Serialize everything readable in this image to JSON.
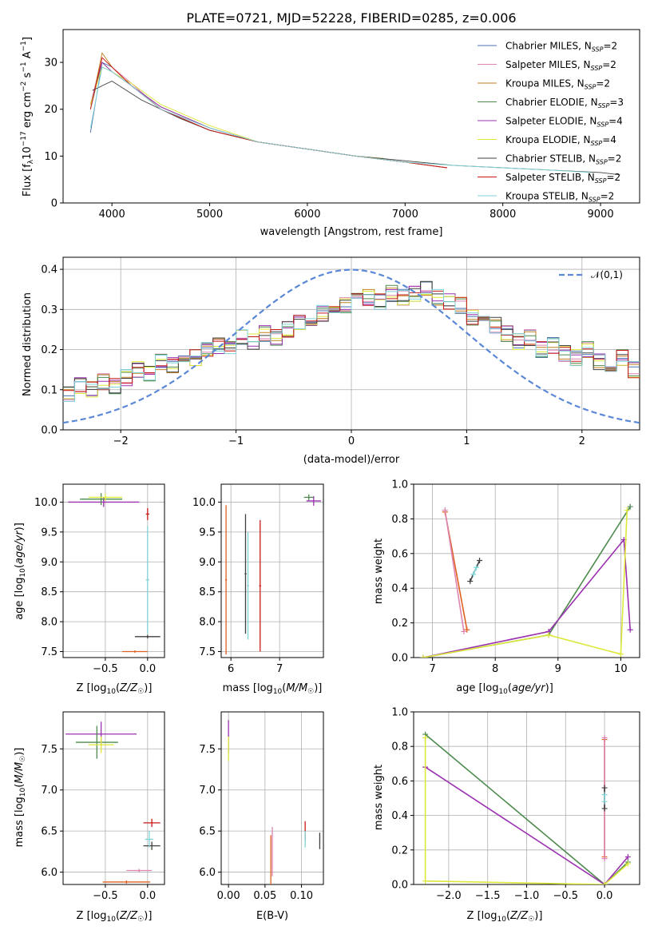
{
  "chart_data": [
    {
      "type": "line",
      "title": "PLATE=0721, MJD=52228, FIBERID=0285, z=0.006",
      "xlabel": "wavelength [Angstrom, rest frame]",
      "ylabel": "Flux [f_λ10^-17 erg cm^-2 s^-1 A^-1]",
      "xlim": [
        3500,
        9400
      ],
      "ylim": [
        0,
        37
      ],
      "xticks": [
        4000,
        5000,
        6000,
        7000,
        8000,
        9000
      ],
      "yticks": [
        0,
        10,
        20,
        30
      ],
      "grid": false,
      "legend_position": "top-right",
      "series": [
        {
          "name": "Chabrier MILES, N_SSP=2",
          "color": "#4c72b0",
          "x": [
            3780,
            3900,
            4000,
            4200,
            4500,
            5000,
            5500,
            6000,
            6500,
            7000,
            7430
          ],
          "y": [
            15,
            30,
            29,
            25,
            20,
            15.5,
            13,
            11.5,
            10,
            8.7,
            7.5
          ]
        },
        {
          "name": "Salpeter MILES, N_SSP=2",
          "color": "#dd84b0",
          "x": [
            3780,
            3900,
            4000,
            4200,
            4500,
            5000,
            5500,
            6000,
            6500,
            7000,
            7430
          ],
          "y": [
            21,
            31,
            29,
            25.5,
            20,
            15.5,
            13,
            11.5,
            10,
            8.7,
            7.5
          ]
        },
        {
          "name": "Kroupa MILES, N_SSP=2",
          "color": "#c08020",
          "x": [
            3780,
            3900,
            4000,
            4200,
            4500,
            5000,
            5500,
            6000,
            6500,
            7000,
            7430
          ],
          "y": [
            20,
            32,
            29,
            25,
            20,
            15.5,
            13,
            11.5,
            10,
            8.7,
            7.5
          ]
        },
        {
          "name": "Chabrier ELODIE, N_SSP=3",
          "color": "#4e8a4e",
          "x": [
            3780,
            3900,
            4000,
            4200,
            4500,
            5000,
            5500,
            6000,
            6500,
            6780
          ],
          "y": [
            20,
            30,
            28,
            25,
            20.5,
            16,
            13,
            11.5,
            10,
            9.5
          ]
        },
        {
          "name": "Salpeter ELODIE, N_SSP=4",
          "color": "#9b30b0",
          "x": [
            3780,
            3900,
            4000,
            4200,
            4500,
            5000,
            5500,
            6000,
            6500,
            6780
          ],
          "y": [
            21,
            30,
            28,
            25,
            20.5,
            16,
            13,
            11.5,
            10,
            9.5
          ]
        },
        {
          "name": "Kroupa ELODIE, N_SSP=4",
          "color": "#dde83a",
          "x": [
            3780,
            3900,
            4000,
            4200,
            4500,
            5000,
            5500,
            6000,
            6500,
            6780
          ],
          "y": [
            21,
            29,
            28,
            25.5,
            21,
            16.5,
            13,
            11.5,
            10,
            9.5
          ]
        },
        {
          "name": "Chabrier STELIB, N_SSP=2",
          "color": "#404040",
          "x": [
            3800,
            4000,
            4300,
            4700,
            5000,
            5500,
            6000,
            6500,
            7000,
            7500,
            8000,
            8500,
            9000,
            9200
          ],
          "y": [
            24,
            26,
            22,
            18,
            15.5,
            13,
            11.5,
            10,
            9,
            8,
            7.5,
            7,
            6.5,
            6
          ]
        },
        {
          "name": "Salpeter STELIB, N_SSP=2",
          "color": "#c81818",
          "x": [
            3780,
            3900,
            4000,
            4200,
            4500,
            5000,
            5500,
            6000,
            6500,
            7000,
            7430
          ],
          "y": [
            20,
            31,
            29,
            25,
            20,
            15.5,
            13,
            11.5,
            10,
            8.7,
            7.5
          ]
        },
        {
          "name": "Kroupa STELIB, N_SSP=2",
          "color": "#7fd4d8",
          "x": [
            3780,
            3900,
            4000,
            4200,
            4500,
            5000,
            5500,
            6000,
            6500,
            7000,
            7500,
            8000,
            8500,
            8900
          ],
          "y": [
            16,
            29,
            28,
            25,
            20,
            16,
            13,
            11.5,
            10,
            8.7,
            8,
            7.5,
            7,
            6.5
          ]
        }
      ]
    },
    {
      "type": "line",
      "xlabel": "(data-model)/error",
      "ylabel": "Normed distribution",
      "xlim": [
        -2.5,
        2.5
      ],
      "ylim": [
        0,
        0.43
      ],
      "xticks": [
        -2,
        -1,
        0,
        1,
        2
      ],
      "yticks": [
        0.0,
        0.1,
        0.2,
        0.3,
        0.4
      ],
      "grid": true,
      "legend_position": "top-right",
      "legend": "𝒩(0,1)",
      "reference": {
        "name": "𝒩(0,1)",
        "color": "#5a87d6",
        "style": "dashed"
      },
      "bin_edges_range": [
        -2.5,
        2.5
      ],
      "bin_width": 0.1,
      "histogram_base": [
        0.09,
        0.11,
        0.1,
        0.12,
        0.11,
        0.13,
        0.15,
        0.14,
        0.17,
        0.16,
        0.19,
        0.18,
        0.2,
        0.21,
        0.2,
        0.23,
        0.22,
        0.24,
        0.23,
        0.25,
        0.27,
        0.28,
        0.29,
        0.3,
        0.31,
        0.32,
        0.33,
        0.32,
        0.34,
        0.33,
        0.34,
        0.35,
        0.33,
        0.32,
        0.31,
        0.28,
        0.27,
        0.26,
        0.24,
        0.22,
        0.23,
        0.2,
        0.21,
        0.19,
        0.18,
        0.2,
        0.17,
        0.16,
        0.18,
        0.15
      ],
      "histogram_colors": [
        "#4c72b0",
        "#dd84b0",
        "#c08020",
        "#4e8a4e",
        "#9b30b0",
        "#dde83a",
        "#404040",
        "#c81818",
        "#7fd4d8"
      ]
    },
    {
      "type": "scatter",
      "xlabel": "Z [log10(Z/Z☉)]",
      "ylabel": "age  [log10(age/yr)]",
      "xlim": [
        -1.0,
        0.2
      ],
      "ylim": [
        7.4,
        10.3
      ],
      "xticks": [
        -0.5,
        0.0
      ],
      "yticks": [
        7.5,
        8.0,
        8.5,
        9.0,
        9.5,
        10.0
      ],
      "grid": true,
      "points": [
        {
          "x": -0.52,
          "y": 10.0,
          "xerr": 0.42,
          "yerr": 0.08,
          "color": "#9b30b0"
        },
        {
          "x": -0.55,
          "y": 10.05,
          "xerr": 0.25,
          "yerr": 0.1,
          "color": "#4e8a4e"
        },
        {
          "x": -0.5,
          "y": 10.08,
          "xerr": 0.2,
          "yerr": 0.06,
          "color": "#dde83a"
        },
        {
          "x": 0.0,
          "y": 9.8,
          "xerr": 0.02,
          "yerr": 0.1,
          "color": "#c81818"
        },
        {
          "x": 0.0,
          "y": 7.75,
          "xerr": 0.15,
          "yerr": 0.03,
          "color": "#404040"
        },
        {
          "x": -0.15,
          "y": 7.5,
          "xerr": 0.15,
          "yerr": 0.02,
          "color": "#e06020"
        },
        {
          "x": 0.0,
          "y": 8.7,
          "xerr": 0.02,
          "yerr": 0.9,
          "color": "#7fd4d8"
        }
      ]
    },
    {
      "type": "scatter",
      "xlabel": "mass [log10(M/M☉)]",
      "ylabel": "",
      "xlim": [
        5.8,
        7.9
      ],
      "ylim": [
        7.4,
        10.3
      ],
      "xticks": [
        6,
        7
      ],
      "yticks": [
        7.5,
        8.0,
        8.5,
        9.0,
        9.5,
        10.0
      ],
      "grid": true,
      "points": [
        {
          "x": 7.7,
          "y": 10.02,
          "xerr": 0.15,
          "yerr": 0.08,
          "color": "#9b30b0"
        },
        {
          "x": 7.6,
          "y": 10.08,
          "xerr": 0.1,
          "yerr": 0.05,
          "color": "#4e8a4e"
        },
        {
          "x": 5.9,
          "y": 8.7,
          "xerr": 0.02,
          "yerr": 1.25,
          "color": "#e06020"
        },
        {
          "x": 6.6,
          "y": 8.6,
          "xerr": 0.02,
          "yerr": 1.1,
          "color": "#c81818"
        },
        {
          "x": 6.35,
          "y": 8.6,
          "xerr": 0.02,
          "yerr": 0.9,
          "color": "#7fd4d8"
        },
        {
          "x": 6.3,
          "y": 8.8,
          "xerr": 0.02,
          "yerr": 1.0,
          "color": "#404040"
        }
      ]
    },
    {
      "type": "line",
      "xlabel": "age  [log10(age/yr)]",
      "ylabel": "mass weight",
      "xlim": [
        6.7,
        10.3
      ],
      "ylim": [
        0,
        1.0
      ],
      "xticks": [
        7,
        8,
        9,
        10
      ],
      "yticks": [
        0.0,
        0.2,
        0.4,
        0.6,
        0.8,
        1.0
      ],
      "grid": true,
      "series": [
        {
          "color": "#4e8a4e",
          "x": [
            6.85,
            8.85,
            10.15
          ],
          "y": [
            0.0,
            0.13,
            0.87
          ]
        },
        {
          "color": "#9b30b0",
          "x": [
            6.85,
            8.85,
            10.05,
            10.15
          ],
          "y": [
            0.0,
            0.15,
            0.68,
            0.16
          ]
        },
        {
          "color": "#dde83a",
          "x": [
            6.85,
            8.85,
            10.0,
            10.1
          ],
          "y": [
            0.0,
            0.13,
            0.02,
            0.85
          ]
        },
        {
          "color": "#e06020",
          "x": [
            7.2,
            7.55
          ],
          "y": [
            0.84,
            0.16
          ]
        },
        {
          "color": "#dd84b0",
          "x": [
            7.2,
            7.5
          ],
          "y": [
            0.85,
            0.15
          ]
        },
        {
          "color": "#404040",
          "x": [
            7.6,
            7.75
          ],
          "y": [
            0.44,
            0.56
          ]
        },
        {
          "color": "#7fd4d8",
          "x": [
            7.65,
            7.7
          ],
          "y": [
            0.48,
            0.52
          ]
        }
      ]
    },
    {
      "type": "scatter",
      "xlabel": "Z [log10(Z/Z☉)]",
      "ylabel": "mass [log10(M/M☉)]",
      "xlim": [
        -1.0,
        0.2
      ],
      "ylim": [
        5.85,
        7.95
      ],
      "xticks": [
        -0.5,
        0.0
      ],
      "yticks": [
        6.0,
        6.5,
        7.0,
        7.5
      ],
      "grid": true,
      "points": [
        {
          "x": -0.55,
          "y": 7.68,
          "xerr": 0.42,
          "yerr": 0.15,
          "color": "#9b30b0"
        },
        {
          "x": -0.6,
          "y": 7.58,
          "xerr": 0.25,
          "yerr": 0.2,
          "color": "#4e8a4e"
        },
        {
          "x": -0.55,
          "y": 7.55,
          "xerr": 0.15,
          "yerr": 0.1,
          "color": "#dde83a"
        },
        {
          "x": 0.05,
          "y": 6.6,
          "xerr": 0.1,
          "yerr": 0.05,
          "color": "#c81818"
        },
        {
          "x": 0.05,
          "y": 6.32,
          "xerr": 0.1,
          "yerr": 0.05,
          "color": "#404040"
        },
        {
          "x": 0.02,
          "y": 6.4,
          "xerr": 0.05,
          "yerr": 0.1,
          "color": "#7fd4d8"
        },
        {
          "x": -0.1,
          "y": 6.02,
          "xerr": 0.15,
          "yerr": 0.02,
          "color": "#dd84b0"
        },
        {
          "x": -0.25,
          "y": 5.88,
          "xerr": 0.28,
          "yerr": 0.02,
          "color": "#e06020"
        }
      ]
    },
    {
      "type": "scatter",
      "xlabel": "E(B-V)",
      "ylabel": "",
      "xlim": [
        -0.01,
        0.13
      ],
      "ylim": [
        5.85,
        7.95
      ],
      "xticks": [
        0.0,
        0.05,
        0.1
      ],
      "yticks": [
        6.0,
        6.5,
        7.0,
        7.5
      ],
      "grid": true,
      "points": [
        {
          "x": 0.0,
          "y": 7.65,
          "xerr": 0.0,
          "yerr": 0.2,
          "color": "#9b30b0"
        },
        {
          "x": 0.0,
          "y": 7.5,
          "xerr": 0.0,
          "yerr": 0.15,
          "color": "#dde83a"
        },
        {
          "x": 0.058,
          "y": 6.15,
          "xerr": 0.0,
          "yerr": 0.3,
          "color": "#e06020"
        },
        {
          "x": 0.06,
          "y": 6.25,
          "xerr": 0.0,
          "yerr": 0.3,
          "color": "#dd84b0"
        },
        {
          "x": 0.105,
          "y": 6.5,
          "xerr": 0.0,
          "yerr": 0.12,
          "color": "#c81818"
        },
        {
          "x": 0.105,
          "y": 6.4,
          "xerr": 0.0,
          "yerr": 0.1,
          "color": "#7fd4d8"
        },
        {
          "x": 0.125,
          "y": 6.38,
          "xerr": 0.0,
          "yerr": 0.1,
          "color": "#404040"
        }
      ]
    },
    {
      "type": "line",
      "xlabel": "Z [log10(Z/Z☉)]",
      "ylabel": "mass weight",
      "xlim": [
        -2.45,
        0.45
      ],
      "ylim": [
        0,
        1.0
      ],
      "xticks": [
        -2.0,
        -1.5,
        -1.0,
        -0.5,
        0.0
      ],
      "yticks": [
        0.0,
        0.2,
        0.4,
        0.6,
        0.8,
        1.0
      ],
      "grid": true,
      "series": [
        {
          "color": "#4e8a4e",
          "x": [
            -2.3,
            0.0,
            0.3
          ],
          "y": [
            0.87,
            0.0,
            0.13
          ]
        },
        {
          "color": "#9b30b0",
          "x": [
            -2.3,
            0.0,
            0.3
          ],
          "y": [
            0.68,
            0.0,
            0.16
          ]
        },
        {
          "color": "#dde83a",
          "x": [
            -2.3,
            -2.3,
            0.0,
            0.3
          ],
          "y": [
            0.85,
            0.02,
            0.0,
            0.12
          ]
        },
        {
          "color": "#e06020",
          "x": [
            0.0,
            0.0
          ],
          "y": [
            0.16,
            0.84
          ]
        },
        {
          "color": "#dd84b0",
          "x": [
            0.0,
            0.0
          ],
          "y": [
            0.15,
            0.85
          ]
        },
        {
          "color": "#404040",
          "x": [
            0.0,
            0.0
          ],
          "y": [
            0.44,
            0.56
          ]
        },
        {
          "color": "#7fd4d8",
          "x": [
            0.0,
            0.0
          ],
          "y": [
            0.48,
            0.52
          ]
        }
      ]
    }
  ],
  "labels": {
    "title": "PLATE=0721, MJD=52228, FIBERID=0285, z=0.006",
    "p1_xlabel": "wavelength [Angstrom, rest frame]",
    "p2_xlabel": "(data-model)/error",
    "p2_ylabel": "Normed distribution",
    "p3_xlabel": "Z [log10(Z/Z☉)]",
    "p3_ylabel": "age  [log10(age/yr)]",
    "p4_xlabel": "mass [log10(M/M☉)]",
    "p5_xlabel": "age  [log10(age/yr)]",
    "p5_ylabel": "mass weight",
    "p6_xlabel": "Z [log10(Z/Z☉)]",
    "p6_ylabel": "mass [log10(M/M☉)]",
    "p7_xlabel": "E(B-V)",
    "p8_xlabel": "Z [log10(Z/Z☉)]",
    "p8_ylabel": "mass weight",
    "normal_legend": "𝒩(0,1)"
  }
}
